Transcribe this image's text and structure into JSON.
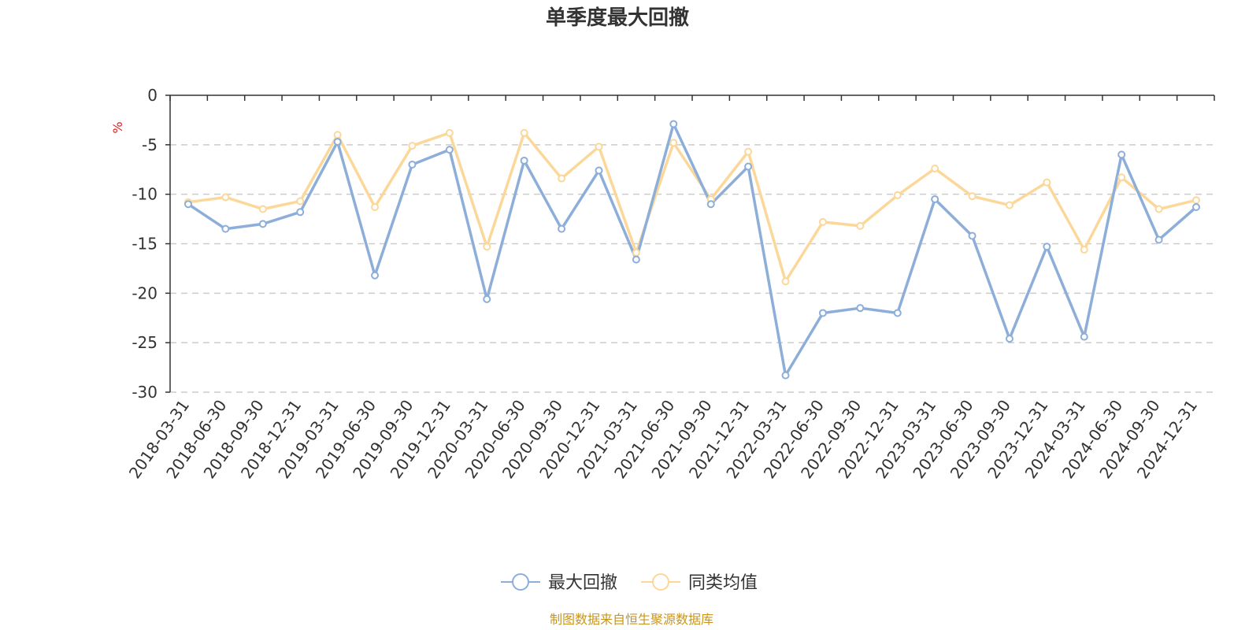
{
  "title": "单季度最大回撤",
  "source": "制图数据来自恒生聚源数据库",
  "colors": {
    "series1": "#8caed9",
    "series2": "#fbd89a",
    "axis": "#333333",
    "grid": "#cccccc",
    "unit": "#e02020",
    "source": "#c8961e"
  },
  "chart_data": {
    "type": "line",
    "title": "单季度最大回撤",
    "ylabel": "%",
    "xlabel": "",
    "ylim": [
      -30,
      0
    ],
    "yticks": [
      0,
      -5,
      -10,
      -15,
      -20,
      -25,
      -30
    ],
    "grid": true,
    "legend": "bottom-center",
    "categories": [
      "2018-03-31",
      "2018-06-30",
      "2018-09-30",
      "2018-12-31",
      "2019-03-31",
      "2019-06-30",
      "2019-09-30",
      "2019-12-31",
      "2020-03-31",
      "2020-06-30",
      "2020-09-30",
      "2020-12-31",
      "2021-03-31",
      "2021-06-30",
      "2021-09-30",
      "2021-12-31",
      "2022-03-31",
      "2022-06-30",
      "2022-09-30",
      "2022-12-31",
      "2023-03-31",
      "2023-06-30",
      "2023-09-30",
      "2023-12-31",
      "2024-03-31",
      "2024-06-30",
      "2024-09-30",
      "2024-12-31"
    ],
    "series": [
      {
        "name": "最大回撤",
        "color": "#8caed9",
        "values": [
          -11.0,
          -13.5,
          -13.0,
          -11.8,
          -4.7,
          -18.2,
          -7.0,
          -5.5,
          -20.6,
          -6.6,
          -13.5,
          -7.6,
          -16.6,
          -2.9,
          -11.0,
          -7.2,
          -28.3,
          -22.0,
          -21.5,
          -22.0,
          -10.5,
          -14.2,
          -24.6,
          -15.3,
          -24.4,
          -6.0,
          -14.6,
          -11.3
        ]
      },
      {
        "name": "同类均值",
        "color": "#fbd89a",
        "values": [
          -10.8,
          -10.3,
          -11.5,
          -10.7,
          -4.0,
          -11.3,
          -5.1,
          -3.8,
          -15.3,
          -3.8,
          -8.4,
          -5.2,
          -15.9,
          -4.8,
          -10.5,
          -5.7,
          -18.8,
          -12.8,
          -13.2,
          -10.1,
          -7.4,
          -10.2,
          -11.1,
          -8.8,
          -15.6,
          -8.3,
          -11.5,
          -10.6
        ]
      }
    ]
  }
}
